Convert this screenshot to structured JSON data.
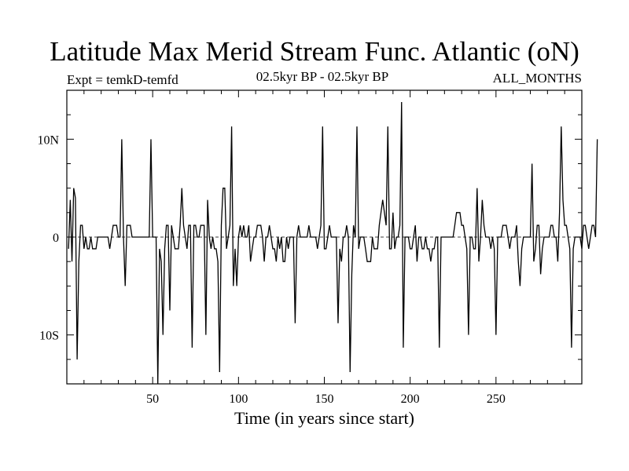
{
  "chart_data": {
    "type": "line",
    "title": "Latitude Max Merid Stream Func. Atlantic (oN)",
    "subtitle_left": "Expt = temkD-temfd",
    "subtitle_center": "02.5kyr BP - 02.5kyr BP",
    "subtitle_right": "ALL_MONTHS",
    "xlabel": "Time (in years since start)",
    "ylabel": "",
    "xlim": [
      0,
      300
    ],
    "ylim": [
      -15,
      15
    ],
    "x_ticks": [
      50,
      100,
      150,
      200,
      250
    ],
    "x_tick_labels": [
      "50",
      "100",
      "150",
      "200",
      "250"
    ],
    "y_ticks": [
      -10,
      0,
      10
    ],
    "y_tick_labels": [
      "10S",
      "0",
      "10N"
    ],
    "zero_line": "dashed",
    "series": [
      {
        "name": "Latitude Max Merid Stream Func. Atlantic",
        "x_start": 1,
        "x_step": 1,
        "values": [
          -1.2,
          3.8,
          -2.5,
          5,
          4,
          -12.5,
          -2.5,
          1.2,
          1.2,
          -1.2,
          0,
          -1.2,
          -1.2,
          0,
          -1.2,
          -1.2,
          -1.2,
          0,
          0,
          0,
          0,
          0,
          0,
          0,
          -1.2,
          0,
          1.2,
          1.2,
          1.2,
          0,
          0,
          10,
          0,
          -5,
          1.2,
          1.2,
          1.2,
          0,
          0,
          0,
          0,
          0,
          0,
          0,
          0,
          0,
          0,
          0,
          10,
          0,
          0,
          0,
          -15,
          -1.2,
          -2.5,
          -10,
          -1.2,
          1.2,
          1.2,
          -7.5,
          1.2,
          0,
          -1.2,
          -1.2,
          -1.2,
          1.2,
          5,
          1.2,
          0,
          -1.2,
          1.2,
          1.2,
          -11.3,
          1.2,
          1.2,
          0,
          0,
          1.2,
          1.2,
          1.2,
          -10,
          3.8,
          0,
          -1.2,
          0,
          -1.2,
          -1.2,
          -2.5,
          -13.8,
          1.2,
          5,
          5,
          -1.2,
          0,
          1.2,
          11.3,
          -5,
          -1.2,
          -5,
          0,
          1.2,
          0,
          1.2,
          0,
          0,
          1.2,
          -2.5,
          -1.2,
          0,
          0,
          1.2,
          1.2,
          1.2,
          0,
          -2.5,
          0,
          0,
          1.2,
          0,
          -1.2,
          -1.2,
          -2.5,
          0,
          -1.2,
          0,
          -2.5,
          -2.5,
          0,
          -1.2,
          0,
          0,
          0,
          -8.8,
          0,
          1.2,
          0,
          0,
          0,
          0,
          0,
          1.2,
          0,
          0,
          0,
          0,
          -1.2,
          0,
          1.2,
          11.3,
          -1.2,
          -1.2,
          0,
          1.2,
          0,
          0,
          0,
          0,
          -8.8,
          -1.2,
          -2.5,
          0,
          0,
          1.2,
          0,
          -13.8,
          -3.8,
          1.2,
          0,
          11.3,
          -1.2,
          0,
          0,
          0,
          -1.2,
          -2.5,
          -2.5,
          -2.5,
          0,
          -1.2,
          -1.2,
          -1.2,
          1.2,
          2.5,
          3.8,
          2.5,
          1.2,
          11.3,
          -1.2,
          -1.2,
          2.5,
          -1.2,
          0,
          0,
          1.2,
          13.8,
          -11.3,
          0,
          0,
          0,
          -1.2,
          -1.2,
          0,
          1.2,
          -2.5,
          0,
          0,
          -1.2,
          -1.2,
          0,
          -1.2,
          -1.2,
          -2.5,
          -1.2,
          -1.2,
          0,
          0,
          -11.3,
          0,
          0,
          0,
          0,
          0,
          0,
          0,
          0,
          1.2,
          2.5,
          2.5,
          2.5,
          1.2,
          1.2,
          0,
          -1.2,
          -10,
          0,
          0,
          -1.2,
          -1.2,
          5,
          -2.5,
          0,
          3.8,
          1.2,
          0,
          0,
          0,
          -1.2,
          0,
          -1.2,
          -10,
          0,
          0,
          0,
          1.2,
          1.2,
          1.2,
          0,
          -1.2,
          0,
          0,
          0,
          1.2,
          -2.5,
          -5,
          -1.2,
          0,
          0,
          0,
          0,
          0,
          7.5,
          -2.5,
          -1.2,
          1.2,
          1.2,
          -3.8,
          -1.2,
          0,
          0,
          0,
          0,
          1.2,
          1.2,
          0,
          0,
          -2.5,
          2.5,
          11.3,
          3.8,
          1.2,
          1.2,
          0,
          -1.2,
          -11.3,
          -1.2,
          0,
          0,
          0,
          0,
          -1.2,
          1.2,
          1.2,
          0,
          -1.2,
          0,
          1.2,
          1.2,
          0,
          10
        ]
      }
    ]
  }
}
